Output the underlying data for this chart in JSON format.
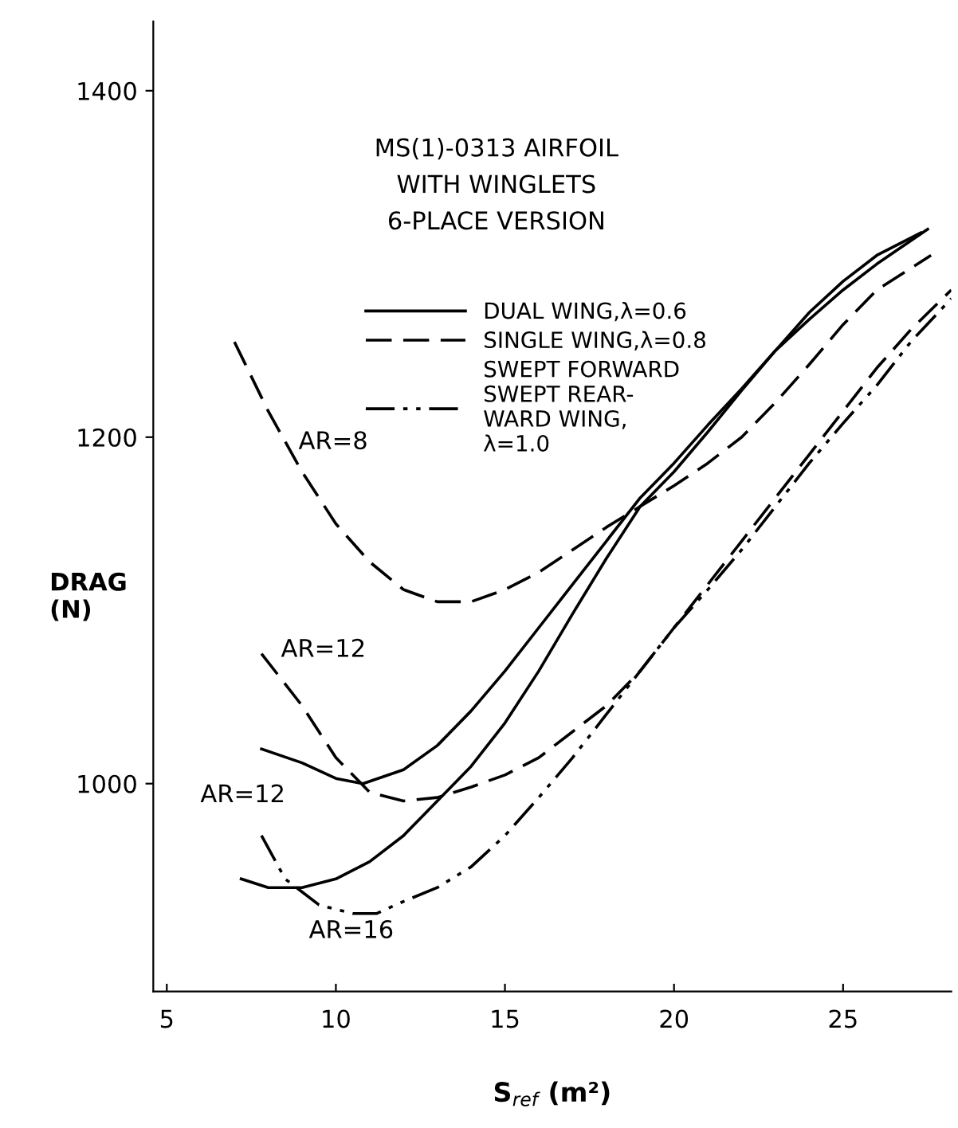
{
  "chart_data": {
    "type": "line",
    "title": "MS(1)-0313 AIRFOIL\nWITH WINGLETS\n6-PLACE VERSION",
    "xlabel": "S$_{ref}$ (m²)",
    "ylabel": "DRAG\n(N)",
    "xlim": [
      4.6,
      28.2
    ],
    "ylim": [
      880,
      1440
    ],
    "xticks": [
      5,
      10,
      15,
      20,
      25
    ],
    "yticks": [
      1000,
      1200,
      1400
    ],
    "grid": false,
    "legend": "top",
    "marker": "none",
    "series": [
      {
        "name": "DUAL WING,λ=0.6",
        "color": "#000000",
        "line_style": "solid",
        "x": [
          7.8,
          9,
          10,
          10.8,
          12,
          13,
          14,
          15,
          16,
          17,
          18,
          19,
          20,
          21,
          22,
          23,
          24,
          25,
          26,
          27.5
        ],
        "values": [
          1020,
          1012,
          1003,
          1000,
          1008,
          1022,
          1042,
          1065,
          1090,
          1115,
          1140,
          1165,
          1185,
          1207,
          1228,
          1250,
          1268,
          1285,
          1300,
          1320
        ]
      },
      {
        "color": "#000000",
        "line_style": "solid",
        "x": [
          7.2,
          8,
          9,
          10,
          11,
          12,
          13,
          14,
          15,
          16,
          17,
          18,
          19,
          20,
          21,
          22,
          23,
          24,
          25,
          26,
          27.3
        ],
        "values": [
          945,
          940,
          940,
          945,
          955,
          970,
          990,
          1010,
          1035,
          1065,
          1098,
          1130,
          1160,
          1180,
          1203,
          1227,
          1250,
          1272,
          1290,
          1305,
          1318
        ]
      },
      {
        "name": "SINGLE WING,λ=0.8",
        "color": "#000000",
        "line_style": "dashed",
        "x": [
          7.0,
          8,
          9,
          10,
          11,
          12,
          13,
          14,
          15,
          16,
          17,
          18,
          19,
          20,
          21,
          22,
          23,
          24,
          25,
          26,
          27.6
        ],
        "values": [
          1255,
          1215,
          1180,
          1150,
          1128,
          1112,
          1105,
          1105,
          1112,
          1122,
          1135,
          1148,
          1160,
          1172,
          1185,
          1200,
          1220,
          1242,
          1265,
          1285,
          1305
        ]
      },
      {
        "color": "#000000",
        "line_style": "dashed",
        "x": [
          7.8,
          9,
          10,
          11,
          12,
          13,
          14,
          15,
          16,
          17,
          18,
          19,
          20,
          21,
          22,
          23,
          24,
          25,
          26,
          27,
          28.2
        ],
        "values": [
          1075,
          1045,
          1015,
          995,
          990,
          992,
          998,
          1005,
          1015,
          1030,
          1045,
          1065,
          1090,
          1115,
          1140,
          1165,
          1190,
          1215,
          1240,
          1262,
          1285
        ]
      },
      {
        "name": "SWEPT FORWARD\nSWEPT REAR-\nWARD WING,\nλ=1.0",
        "color": "#000000",
        "line_style": "dashdotdot",
        "x": [
          7.8,
          8.5,
          9.5,
          10.5,
          11.2,
          12,
          13,
          14,
          15,
          16,
          17,
          18,
          19,
          20,
          21,
          22,
          23,
          24,
          25,
          26,
          27,
          28.2
        ],
        "values": [
          970,
          945,
          930,
          925,
          925,
          932,
          940,
          952,
          970,
          992,
          1015,
          1040,
          1065,
          1090,
          1112,
          1135,
          1160,
          1185,
          1208,
          1230,
          1255,
          1280
        ]
      }
    ],
    "annotations": [
      "AR=8",
      "AR=12",
      "AR=12",
      "AR=16"
    ]
  }
}
